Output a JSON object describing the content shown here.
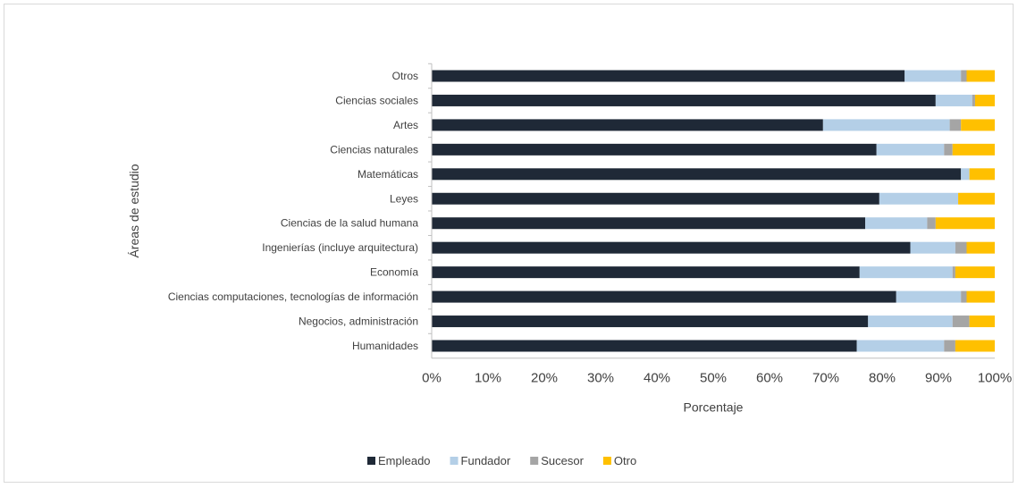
{
  "chart_data": {
    "type": "bar",
    "orientation": "horizontal",
    "stacked": "percent",
    "xlabel": "Porcentaje",
    "ylabel": "Áreas de estudio",
    "xlim": [
      0,
      100
    ],
    "xticks": [
      "0%",
      "10%",
      "20%",
      "30%",
      "40%",
      "50%",
      "60%",
      "70%",
      "80%",
      "90%",
      "100%"
    ],
    "categories": [
      "Humanidades",
      "Negocios, administración",
      "Ciencias computaciones, tecnologías de información",
      "Economía",
      "Ingenierías (incluye arquitectura)",
      "Ciencias de la salud humana",
      "Leyes",
      "Matemáticas",
      "Ciencias naturales",
      "Artes",
      "Ciencias sociales",
      "Otros"
    ],
    "series": [
      {
        "name": "Empleado",
        "color": "#1f2937",
        "values": [
          75.5,
          77.5,
          82.5,
          76.0,
          85.0,
          77.0,
          79.5,
          94.0,
          79.0,
          69.5,
          89.5,
          84.0
        ]
      },
      {
        "name": "Fundador",
        "color": "#b4cfe7",
        "values": [
          15.5,
          15.0,
          11.5,
          16.5,
          8.0,
          11.0,
          14.0,
          1.5,
          12.0,
          22.5,
          6.5,
          10.0
        ]
      },
      {
        "name": "Sucesor",
        "color": "#a5a5a5",
        "values": [
          2.0,
          3.0,
          1.0,
          0.5,
          2.0,
          1.5,
          0.0,
          0.0,
          1.5,
          2.0,
          0.5,
          1.0
        ]
      },
      {
        "name": "Otro",
        "color": "#ffc000",
        "values": [
          7.0,
          4.5,
          5.0,
          7.0,
          5.0,
          10.5,
          6.5,
          4.5,
          7.5,
          6.0,
          3.5,
          5.0
        ]
      }
    ],
    "legend_position": "bottom",
    "grid": false
  }
}
